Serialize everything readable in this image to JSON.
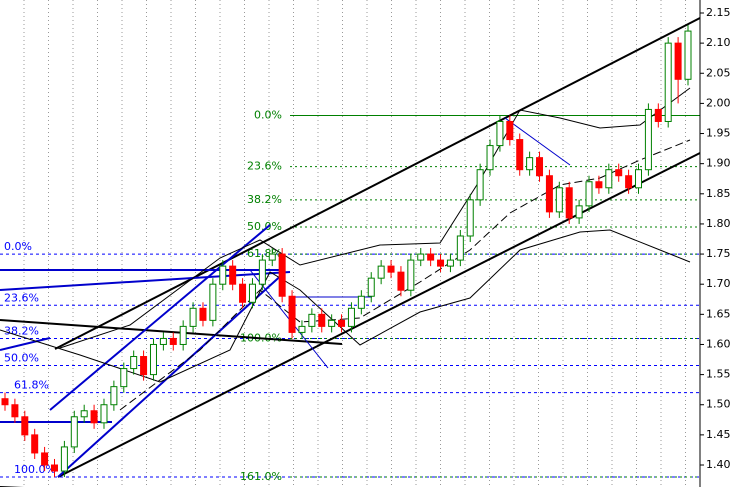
{
  "chart_data": {
    "type": "candlestick",
    "open": [
      1.51,
      1.5,
      1.48,
      1.45,
      1.42,
      1.4,
      1.39,
      1.43,
      1.48,
      1.49,
      1.47,
      1.5,
      1.53,
      1.56,
      1.58,
      1.55,
      1.6,
      1.61,
      1.6,
      1.63,
      1.66,
      1.64,
      1.7,
      1.73,
      1.7,
      1.67,
      1.7,
      1.74,
      1.75,
      1.68,
      1.62,
      1.63,
      1.65,
      1.63,
      1.64,
      1.63,
      1.66,
      1.68,
      1.71,
      1.73,
      1.72,
      1.69,
      1.74,
      1.75,
      1.74,
      1.73,
      1.74,
      1.78,
      1.84,
      1.89,
      1.93,
      1.97,
      1.94,
      1.89,
      1.91,
      1.88,
      1.82,
      1.86,
      1.81,
      1.83,
      1.87,
      1.86,
      1.89,
      1.88,
      1.86,
      1.89,
      1.99,
      1.97,
      2.1,
      2.04
    ],
    "high": [
      1.52,
      1.51,
      1.49,
      1.46,
      1.43,
      1.41,
      1.44,
      1.49,
      1.5,
      1.5,
      1.51,
      1.54,
      1.57,
      1.59,
      1.59,
      1.61,
      1.62,
      1.62,
      1.64,
      1.67,
      1.67,
      1.71,
      1.74,
      1.74,
      1.71,
      1.71,
      1.75,
      1.76,
      1.76,
      1.69,
      1.64,
      1.66,
      1.66,
      1.65,
      1.65,
      1.67,
      1.69,
      1.72,
      1.74,
      1.74,
      1.73,
      1.75,
      1.76,
      1.76,
      1.75,
      1.75,
      1.79,
      1.85,
      1.9,
      1.94,
      1.98,
      1.98,
      1.95,
      1.92,
      1.92,
      1.89,
      1.87,
      1.87,
      1.84,
      1.88,
      1.88,
      1.9,
      1.9,
      1.89,
      1.9,
      2.0,
      2.0,
      2.11,
      2.11,
      2.13
    ],
    "low": [
      1.49,
      1.47,
      1.44,
      1.41,
      1.39,
      1.38,
      1.38,
      1.42,
      1.47,
      1.46,
      1.46,
      1.49,
      1.52,
      1.55,
      1.54,
      1.54,
      1.59,
      1.59,
      1.59,
      1.62,
      1.63,
      1.63,
      1.69,
      1.69,
      1.66,
      1.66,
      1.69,
      1.73,
      1.67,
      1.61,
      1.61,
      1.62,
      1.62,
      1.62,
      1.62,
      1.62,
      1.65,
      1.67,
      1.7,
      1.71,
      1.68,
      1.68,
      1.73,
      1.73,
      1.72,
      1.72,
      1.73,
      1.77,
      1.83,
      1.88,
      1.92,
      1.93,
      1.88,
      1.88,
      1.87,
      1.81,
      1.81,
      1.8,
      1.8,
      1.82,
      1.85,
      1.85,
      1.87,
      1.85,
      1.85,
      1.88,
      1.96,
      1.96,
      2.0,
      2.03
    ],
    "close": [
      1.5,
      1.48,
      1.45,
      1.42,
      1.4,
      1.39,
      1.43,
      1.48,
      1.49,
      1.47,
      1.5,
      1.53,
      1.56,
      1.58,
      1.55,
      1.6,
      1.61,
      1.6,
      1.63,
      1.66,
      1.64,
      1.7,
      1.73,
      1.7,
      1.67,
      1.7,
      1.74,
      1.75,
      1.68,
      1.62,
      1.63,
      1.65,
      1.63,
      1.64,
      1.63,
      1.66,
      1.68,
      1.71,
      1.73,
      1.72,
      1.69,
      1.74,
      1.75,
      1.74,
      1.73,
      1.74,
      1.78,
      1.84,
      1.89,
      1.93,
      1.97,
      1.94,
      1.89,
      1.91,
      1.88,
      1.82,
      1.86,
      1.81,
      1.83,
      1.87,
      1.86,
      1.89,
      1.88,
      1.86,
      1.89,
      1.99,
      1.97,
      2.1,
      2.04,
      2.12
    ],
    "up_color": "#008000",
    "down_color": "#ff0000",
    "ylim": [
      1.38,
      2.155
    ],
    "yticks": [
      {
        "value": 1.4,
        "label": "1.40"
      },
      {
        "value": 1.45,
        "label": "1.45"
      },
      {
        "value": 1.5,
        "label": "1.50"
      },
      {
        "value": 1.55,
        "label": "1.55"
      },
      {
        "value": 1.6,
        "label": "1.60"
      },
      {
        "value": 1.65,
        "label": "1.65"
      },
      {
        "value": 1.7,
        "label": "1.70"
      },
      {
        "value": 1.75,
        "label": "1.75"
      },
      {
        "value": 1.8,
        "label": "1.80"
      },
      {
        "value": 1.85,
        "label": "1.85"
      },
      {
        "value": 1.9,
        "label": "1.90"
      },
      {
        "value": 1.95,
        "label": "1.95"
      },
      {
        "value": 2.0,
        "label": "2.00"
      },
      {
        "value": 2.05,
        "label": "2.05"
      },
      {
        "value": 2.1,
        "label": "2.10"
      },
      {
        "value": 2.15,
        "label": "2.15"
      }
    ],
    "fib_sets": [
      {
        "color": "#0000ff",
        "levels": [
          {
            "value": 1.75,
            "label": "0.0%"
          },
          {
            "value": 1.665,
            "label": "23.6%"
          },
          {
            "value": 1.61,
            "label": "38.2%"
          },
          {
            "value": 1.565,
            "label": "50.0%"
          },
          {
            "value": 1.52,
            "label": "61.8%"
          },
          {
            "value": 1.38,
            "label": "100.0%"
          }
        ]
      },
      {
        "color": "#008000",
        "levels": [
          {
            "value": 1.98,
            "label": "0.0%"
          },
          {
            "value": 1.895,
            "label": "23.6%"
          },
          {
            "value": 1.84,
            "label": "38.2%"
          },
          {
            "value": 1.795,
            "label": "50.0%"
          },
          {
            "value": 1.75,
            "label": "61.8%"
          },
          {
            "value": 1.61,
            "label": "100.0%"
          },
          {
            "value": 1.38,
            "label": "161.0%"
          }
        ]
      }
    ]
  }
}
